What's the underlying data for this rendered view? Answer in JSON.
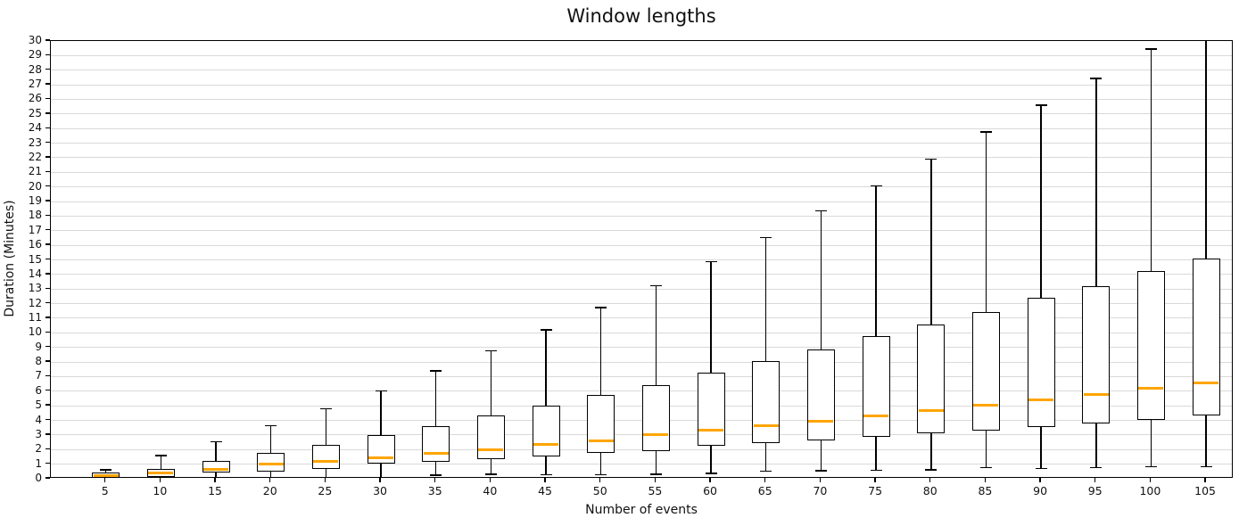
{
  "title": "Window lengths",
  "x_axis_label": "Number of events",
  "y_axis_label": "Duration (Minutes)",
  "colors": {
    "median": "#FFA500",
    "box_edge": "#000000",
    "box_fill": "#ffffff",
    "grid": "#d9d9d9",
    "background": "#ffffff",
    "text": "#111111"
  },
  "chart_data": {
    "type": "boxplot",
    "title": "Window lengths",
    "xlabel": "Number of events",
    "ylabel": "Duration (Minutes)",
    "ylim": [
      0,
      30
    ],
    "ytick_step": 1,
    "grid": "horizontal-only",
    "legend": "none",
    "categories": [
      5,
      10,
      15,
      20,
      25,
      30,
      35,
      40,
      45,
      50,
      55,
      60,
      65,
      70,
      75,
      80,
      85,
      90,
      95,
      100,
      105
    ],
    "boxes": [
      {
        "category": 5,
        "whisker_low": 0.02,
        "q1": 0.07,
        "median": 0.23,
        "q3": 0.42,
        "whisker_high": 0.62,
        "clipped_top": false
      },
      {
        "category": 10,
        "whisker_low": 0.02,
        "q1": 0.13,
        "median": 0.4,
        "q3": 0.68,
        "whisker_high": 1.58,
        "clipped_top": false
      },
      {
        "category": 15,
        "whisker_low": 0.08,
        "q1": 0.41,
        "median": 0.67,
        "q3": 1.2,
        "whisker_high": 2.53,
        "clipped_top": false
      },
      {
        "category": 20,
        "whisker_low": 0.07,
        "q1": 0.51,
        "median": 0.98,
        "q3": 1.8,
        "whisker_high": 3.63,
        "clipped_top": false
      },
      {
        "category": 25,
        "whisker_low": 0.08,
        "q1": 0.67,
        "median": 1.18,
        "q3": 2.35,
        "whisker_high": 4.79,
        "clipped_top": false
      },
      {
        "category": 30,
        "whisker_low": 0.1,
        "q1": 1.02,
        "median": 1.46,
        "q3": 2.97,
        "whisker_high": 6.03,
        "clipped_top": false
      },
      {
        "category": 35,
        "whisker_low": 0.25,
        "q1": 1.18,
        "median": 1.74,
        "q3": 3.58,
        "whisker_high": 7.39,
        "clipped_top": false
      },
      {
        "category": 40,
        "whisker_low": 0.3,
        "q1": 1.35,
        "median": 2.01,
        "q3": 4.33,
        "whisker_high": 8.77,
        "clipped_top": false
      },
      {
        "category": 45,
        "whisker_low": 0.27,
        "q1": 1.51,
        "median": 2.34,
        "q3": 5.0,
        "whisker_high": 10.2,
        "clipped_top": false
      },
      {
        "category": 50,
        "whisker_low": 0.27,
        "q1": 1.79,
        "median": 2.6,
        "q3": 5.75,
        "whisker_high": 11.73,
        "clipped_top": false
      },
      {
        "category": 55,
        "whisker_low": 0.32,
        "q1": 1.89,
        "median": 3.01,
        "q3": 6.43,
        "whisker_high": 13.24,
        "clipped_top": false
      },
      {
        "category": 60,
        "whisker_low": 0.37,
        "q1": 2.24,
        "median": 3.31,
        "q3": 7.27,
        "whisker_high": 14.87,
        "clipped_top": false
      },
      {
        "category": 65,
        "whisker_low": 0.51,
        "q1": 2.44,
        "median": 3.62,
        "q3": 8.05,
        "whisker_high": 16.53,
        "clipped_top": false
      },
      {
        "category": 70,
        "whisker_low": 0.55,
        "q1": 2.64,
        "median": 3.96,
        "q3": 8.86,
        "whisker_high": 18.35,
        "clipped_top": false
      },
      {
        "category": 75,
        "whisker_low": 0.57,
        "q1": 2.87,
        "median": 4.31,
        "q3": 9.77,
        "whisker_high": 20.07,
        "clipped_top": false
      },
      {
        "category": 80,
        "whisker_low": 0.61,
        "q1": 3.14,
        "median": 4.67,
        "q3": 10.57,
        "whisker_high": 21.9,
        "clipped_top": false
      },
      {
        "category": 85,
        "whisker_low": 0.77,
        "q1": 3.31,
        "median": 5.02,
        "q3": 11.44,
        "whisker_high": 23.77,
        "clipped_top": false
      },
      {
        "category": 90,
        "whisker_low": 0.71,
        "q1": 3.55,
        "median": 5.41,
        "q3": 12.38,
        "whisker_high": 25.61,
        "clipped_top": false
      },
      {
        "category": 95,
        "whisker_low": 0.75,
        "q1": 3.78,
        "median": 5.77,
        "q3": 13.2,
        "whisker_high": 27.44,
        "clipped_top": false
      },
      {
        "category": 100,
        "whisker_low": 0.81,
        "q1": 4.04,
        "median": 6.2,
        "q3": 14.23,
        "whisker_high": 29.45,
        "clipped_top": false
      },
      {
        "category": 105,
        "whisker_low": 0.81,
        "q1": 4.31,
        "median": 6.59,
        "q3": 15.09,
        "whisker_high": 30.6,
        "clipped_top": true
      }
    ]
  }
}
